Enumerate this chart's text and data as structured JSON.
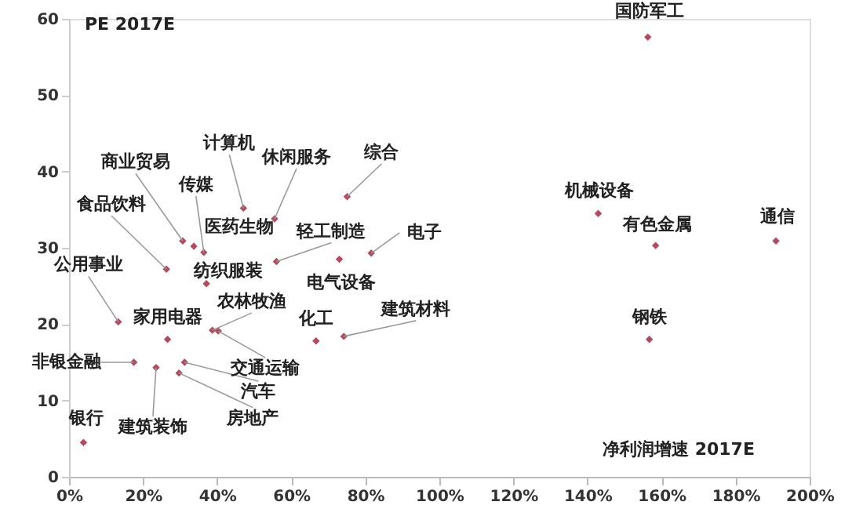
{
  "chart_data": {
    "type": "scatter",
    "xlabel": "净利润增速 2017E",
    "ylabel": "PE 2017E",
    "series": [
      {
        "color": "#b5495e",
        "x": [
          3.9,
          17.5,
          23.5,
          29.7,
          31.2,
          13.3,
          26.6,
          38.7,
          40.3,
          66.7,
          74.2,
          26.3,
          37.1,
          73,
          56,
          30.7,
          36.4,
          33.7,
          47.1,
          55.5,
          75.1,
          81.6,
          156.3,
          142.9,
          158.4,
          190.9,
          156.7
        ],
        "values": [
          4.5,
          15.0,
          14.3,
          13.6,
          15.0,
          20.3,
          18.0,
          19.2,
          19.1,
          17.8,
          18.4,
          27.2,
          25.3,
          28.5,
          28.2,
          30.9,
          29.4,
          30.2,
          35.2,
          33.8,
          36.7,
          29.3,
          57.6,
          34.5,
          30.3,
          30.9,
          18.0
        ]
      }
    ],
    "annotations": [
      {
        "text": "银行",
        "x": 3.9,
        "y": 4.5
      },
      {
        "text": "非银金融",
        "x": 17.5,
        "y": 15.0
      },
      {
        "text": "建筑装饰",
        "x": 23.5,
        "y": 14.3
      },
      {
        "text": "房地产",
        "x": 29.7,
        "y": 13.6
      },
      {
        "text": "汽车",
        "x": 31.2,
        "y": 15.0
      },
      {
        "text": "公用事业",
        "x": 13.3,
        "y": 20.3
      },
      {
        "text": "家用电器",
        "x": 26.6,
        "y": 18.0
      },
      {
        "text": "农林牧渔",
        "x": 38.7,
        "y": 19.2
      },
      {
        "text": "交通运输",
        "x": 40.3,
        "y": 19.1
      },
      {
        "text": "化工",
        "x": 66.7,
        "y": 17.8
      },
      {
        "text": "建筑材料",
        "x": 74.2,
        "y": 18.4
      },
      {
        "text": "食品饮料",
        "x": 26.3,
        "y": 27.2
      },
      {
        "text": "纺织服装",
        "x": 37.1,
        "y": 25.3
      },
      {
        "text": "电气设备",
        "x": 73,
        "y": 28.5
      },
      {
        "text": "轻工制造",
        "x": 56,
        "y": 28.2
      },
      {
        "text": "商业贸易",
        "x": 30.7,
        "y": 30.9
      },
      {
        "text": "传媒",
        "x": 36.4,
        "y": 29.4
      },
      {
        "text": "医药生物",
        "x": 33.7,
        "y": 30.2
      },
      {
        "text": "计算机",
        "x": 47.1,
        "y": 35.2
      },
      {
        "text": "休闲服务",
        "x": 55.5,
        "y": 33.8
      },
      {
        "text": "综合",
        "x": 75.1,
        "y": 36.7
      },
      {
        "text": "电子",
        "x": 81.6,
        "y": 29.3
      },
      {
        "text": "国防军工",
        "x": 156.3,
        "y": 57.6
      },
      {
        "text": "机械设备",
        "x": 142.9,
        "y": 34.5
      },
      {
        "text": "有色金属",
        "x": 158.4,
        "y": 30.3
      },
      {
        "text": "通信",
        "x": 190.9,
        "y": 30.9
      },
      {
        "text": "钢铁",
        "x": 156.7,
        "y": 18.0
      }
    ],
    "xlim": [
      0,
      200
    ],
    "xticks": [
      {
        "value": 0,
        "label": "0%"
      },
      {
        "value": 20,
        "label": "20%"
      },
      {
        "value": 40,
        "label": "40%"
      },
      {
        "value": 60,
        "label": "60%"
      },
      {
        "value": 80,
        "label": "80%"
      },
      {
        "value": 100,
        "label": "100%"
      },
      {
        "value": 120,
        "label": "120%"
      },
      {
        "value": 140,
        "label": "140%"
      },
      {
        "value": 160,
        "label": "160%"
      },
      {
        "value": 180,
        "label": "180%"
      },
      {
        "value": 200,
        "label": "200%"
      }
    ],
    "ylim": [
      0,
      60
    ],
    "yticks": [
      0,
      10,
      20,
      30,
      40,
      50,
      60
    ],
    "grid": false,
    "marker": "diamond"
  }
}
